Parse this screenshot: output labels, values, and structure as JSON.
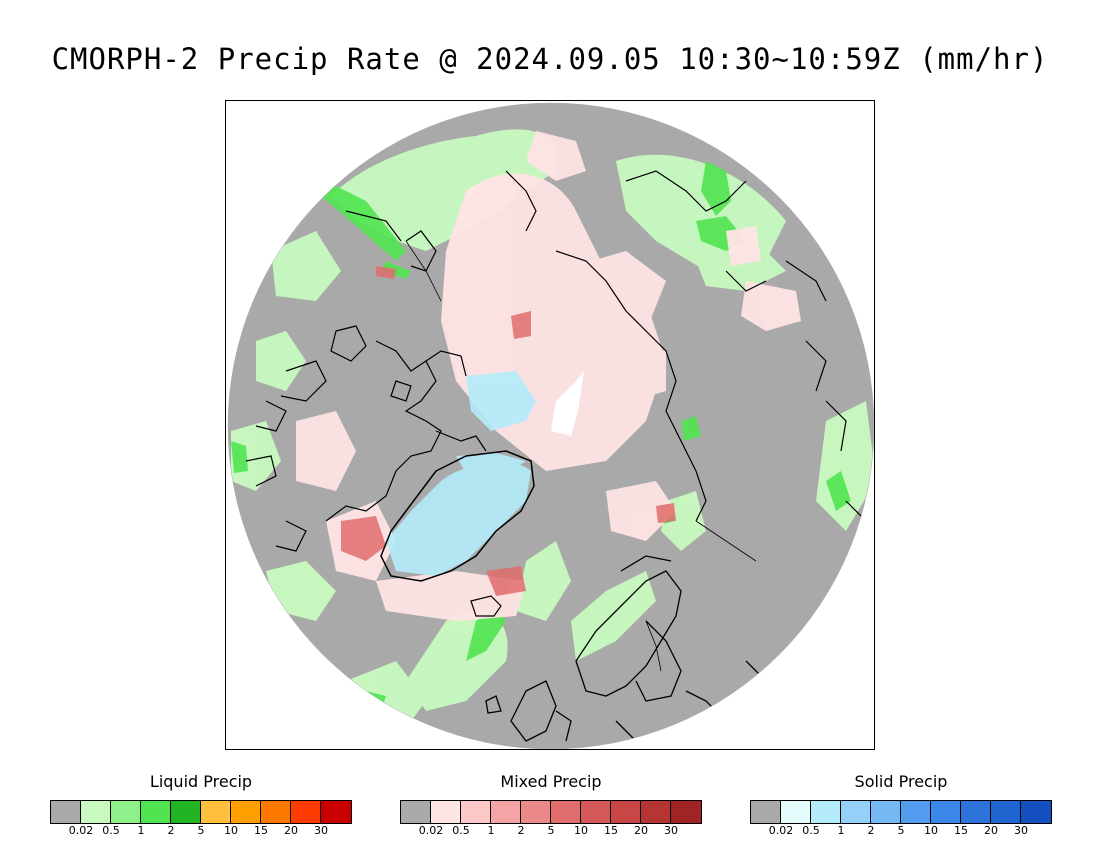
{
  "title": "CMORPH-2 Precip Rate @ 2024.09.05 10:30~10:59Z (mm/hr)",
  "map": {
    "projection": "north-polar-stereographic",
    "no_precip_color": "#a9a9a9",
    "coastline_color": "#000000"
  },
  "legends": [
    {
      "title": "Liquid Precip",
      "colors": [
        "#a9a9a9",
        "#c8fac0",
        "#8ef08a",
        "#50e450",
        "#22b422",
        "#ffc040",
        "#ffa000",
        "#ff7800",
        "#ff3c00",
        "#c80000"
      ],
      "ticks": [
        "0.02",
        "0.5",
        "1",
        "2",
        "5",
        "10",
        "15",
        "20",
        "30"
      ]
    },
    {
      "title": "Mixed Precip",
      "colors": [
        "#a9a9a9",
        "#ffe4e4",
        "#fcc8c8",
        "#f4a4a4",
        "#ec8888",
        "#e06c6c",
        "#d45858",
        "#c84646",
        "#b63434",
        "#a02424"
      ],
      "ticks": [
        "0.02",
        "0.5",
        "1",
        "2",
        "5",
        "10",
        "15",
        "20",
        "30"
      ]
    },
    {
      "title": "Solid Precip",
      "colors": [
        "#a9a9a9",
        "#e4fcfc",
        "#b4ecfa",
        "#94d0f8",
        "#74b8f4",
        "#549cf0",
        "#3c88e8",
        "#2c74dc",
        "#2064d0",
        "#1450c0"
      ],
      "ticks": [
        "0.02",
        "0.5",
        "1",
        "2",
        "5",
        "10",
        "15",
        "20",
        "30"
      ]
    }
  ]
}
